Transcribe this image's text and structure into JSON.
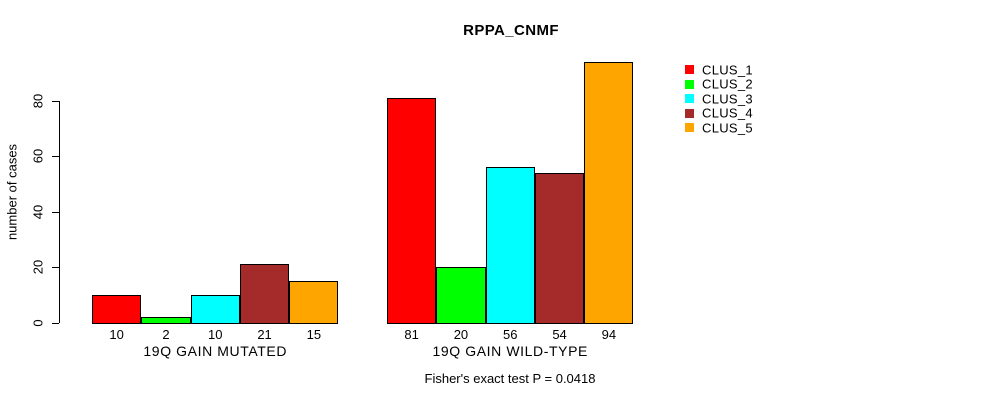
{
  "title": "RPPA_CNMF",
  "y_axis": {
    "label": "number of cases",
    "tick_labels": [
      "0",
      "20",
      "40",
      "60",
      "80"
    ]
  },
  "legend": {
    "items": [
      {
        "label": "CLUS_1",
        "color": "#FF0000"
      },
      {
        "label": "CLUS_2",
        "color": "#00FF00"
      },
      {
        "label": "CLUS_3",
        "color": "#00FFFF"
      },
      {
        "label": "CLUS_4",
        "color": "#A52A2A"
      },
      {
        "label": "CLUS_5",
        "color": "#FFA500"
      }
    ]
  },
  "chart_data": {
    "type": "bar",
    "title": "RPPA_CNMF",
    "ylabel": "number of cases",
    "xlabel": "",
    "categories": [
      "19Q GAIN MUTATED",
      "19Q GAIN WILD-TYPE"
    ],
    "series": [
      {
        "name": "CLUS_1",
        "color": "#FF0000",
        "values": [
          10,
          81
        ]
      },
      {
        "name": "CLUS_2",
        "color": "#00FF00",
        "values": [
          2,
          20
        ]
      },
      {
        "name": "CLUS_3",
        "color": "#00FFFF",
        "values": [
          10,
          56
        ]
      },
      {
        "name": "CLUS_4",
        "color": "#A52A2A",
        "values": [
          21,
          54
        ]
      },
      {
        "name": "CLUS_5",
        "color": "#FFA500",
        "values": [
          15,
          94
        ]
      }
    ],
    "yticks": [
      0,
      20,
      40,
      60,
      80
    ],
    "ylim": [
      0,
      94
    ],
    "grid": false,
    "bar_value_labels_shown": true,
    "legend_position": "right",
    "annotation": "Fisher's exact test P = 0.0418"
  }
}
